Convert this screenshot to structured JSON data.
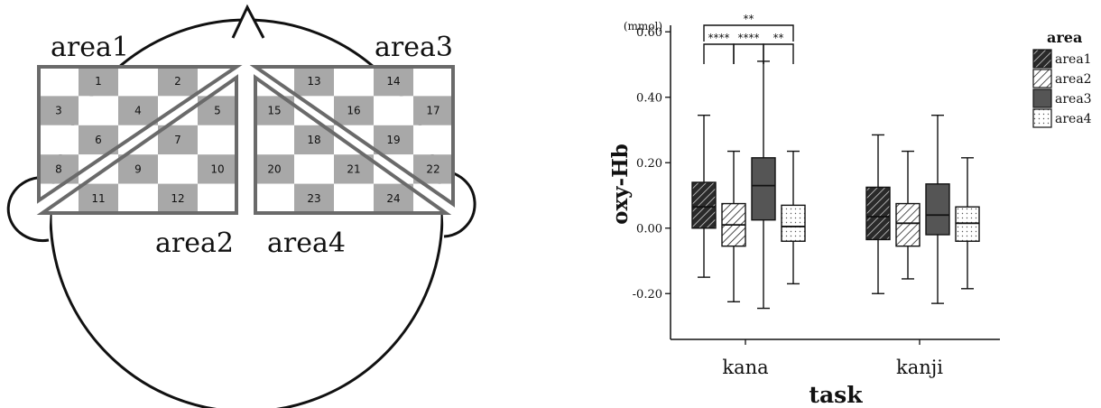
{
  "diagram": {
    "area_labels": [
      "area1",
      "area2",
      "area3",
      "area4"
    ],
    "channels": [
      "1",
      "2",
      "3",
      "4",
      "5",
      "6",
      "7",
      "8",
      "9",
      "10",
      "11",
      "12",
      "13",
      "14",
      "15",
      "16",
      "17",
      "18",
      "19",
      "20",
      "21",
      "22",
      "23",
      "24"
    ],
    "colors": {
      "dark_cell": "#a8a8a8",
      "frame": "#6a6a6a",
      "text": "#111111"
    }
  },
  "chart_data": {
    "type": "boxplot",
    "x_title": "task",
    "y_title": "oxy-Hb",
    "y_unit": "(mmol)",
    "ylim": [
      -0.34,
      0.62
    ],
    "y_ticks": [
      -0.2,
      0.0,
      0.2,
      0.4,
      0.6
    ],
    "y_tick_labels": [
      "-0.20",
      "0.00",
      "0.20",
      "0.40",
      "0.60"
    ],
    "categories": [
      "kana",
      "kanji"
    ],
    "legend_title": "area",
    "series": [
      {
        "name": "area1",
        "fill": "diagonal-dark",
        "values": [
          {
            "min": -0.15,
            "q1": 0.0,
            "median": 0.065,
            "q3": 0.14,
            "max": 0.345
          },
          {
            "min": -0.2,
            "q1": -0.035,
            "median": 0.035,
            "q3": 0.125,
            "max": 0.285
          }
        ]
      },
      {
        "name": "area2",
        "fill": "diagonal-light",
        "values": [
          {
            "min": -0.225,
            "q1": -0.055,
            "median": 0.01,
            "q3": 0.075,
            "max": 0.235
          },
          {
            "min": -0.155,
            "q1": -0.055,
            "median": 0.015,
            "q3": 0.075,
            "max": 0.235
          }
        ]
      },
      {
        "name": "area3",
        "fill": "solid-dark",
        "values": [
          {
            "min": -0.245,
            "q1": 0.025,
            "median": 0.13,
            "q3": 0.215,
            "max": 0.51
          },
          {
            "min": -0.23,
            "q1": -0.02,
            "median": 0.04,
            "q3": 0.135,
            "max": 0.345
          }
        ]
      },
      {
        "name": "area4",
        "fill": "dotted",
        "values": [
          {
            "min": -0.17,
            "q1": -0.04,
            "median": 0.005,
            "q3": 0.07,
            "max": 0.235
          },
          {
            "min": -0.185,
            "q1": -0.04,
            "median": 0.015,
            "q3": 0.065,
            "max": 0.215
          }
        ]
      }
    ],
    "significance": [
      {
        "from": "area1",
        "to": "area4",
        "category": "kana",
        "label": "**"
      },
      {
        "from": "area1",
        "to": "area2",
        "category": "kana",
        "label": "****"
      },
      {
        "from": "area2",
        "to": "area3",
        "category": "kana",
        "label": "****"
      },
      {
        "from": "area3",
        "to": "area4",
        "category": "kana",
        "label": "**"
      }
    ],
    "legend_position": "top-right"
  }
}
